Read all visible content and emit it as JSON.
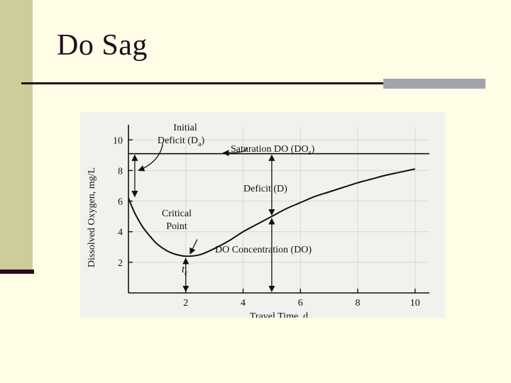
{
  "slide": {
    "title": "Do Sag"
  },
  "chart_data": {
    "type": "line",
    "xlabel": "Travel Time, d",
    "ylabel": "Dissolved Oxygen, mg/L",
    "xlim": [
      0,
      10.5
    ],
    "ylim": [
      0,
      10.8
    ],
    "x_ticks": [
      "2",
      "4",
      "6",
      "8",
      "10"
    ],
    "y_ticks": [
      "2",
      "4",
      "6",
      "8",
      "10"
    ],
    "saturation_do": 9.1,
    "critical_time": 2,
    "series": [
      {
        "x": [
          0,
          0.2,
          0.5,
          0.8,
          1.0,
          1.3,
          1.6,
          2.0,
          2.5,
          3.0,
          3.5,
          4.0,
          4.5,
          5.0,
          5.5,
          6.0,
          6.5,
          7.0,
          7.5,
          8.0,
          8.5,
          9.0,
          9.5,
          10.0
        ],
        "y": [
          6.2,
          5.3,
          4.3,
          3.6,
          3.2,
          2.8,
          2.55,
          2.4,
          2.5,
          2.9,
          3.4,
          4.0,
          4.5,
          5.0,
          5.5,
          5.9,
          6.3,
          6.6,
          6.9,
          7.2,
          7.45,
          7.7,
          7.9,
          8.1
        ]
      }
    ],
    "annotations": {
      "initial": "Initial",
      "initial_deficit": "Deficit (D",
      "initial_deficit_sub": "a",
      "saturation": "Saturation DO (DO",
      "saturation_sub": "s",
      "deficit": "Deficit (D)",
      "critical_line1": "Critical",
      "critical_line2": "Point",
      "concentration": "DO Concentration (DO)",
      "tc": "t",
      "tc_sub": "c"
    }
  }
}
